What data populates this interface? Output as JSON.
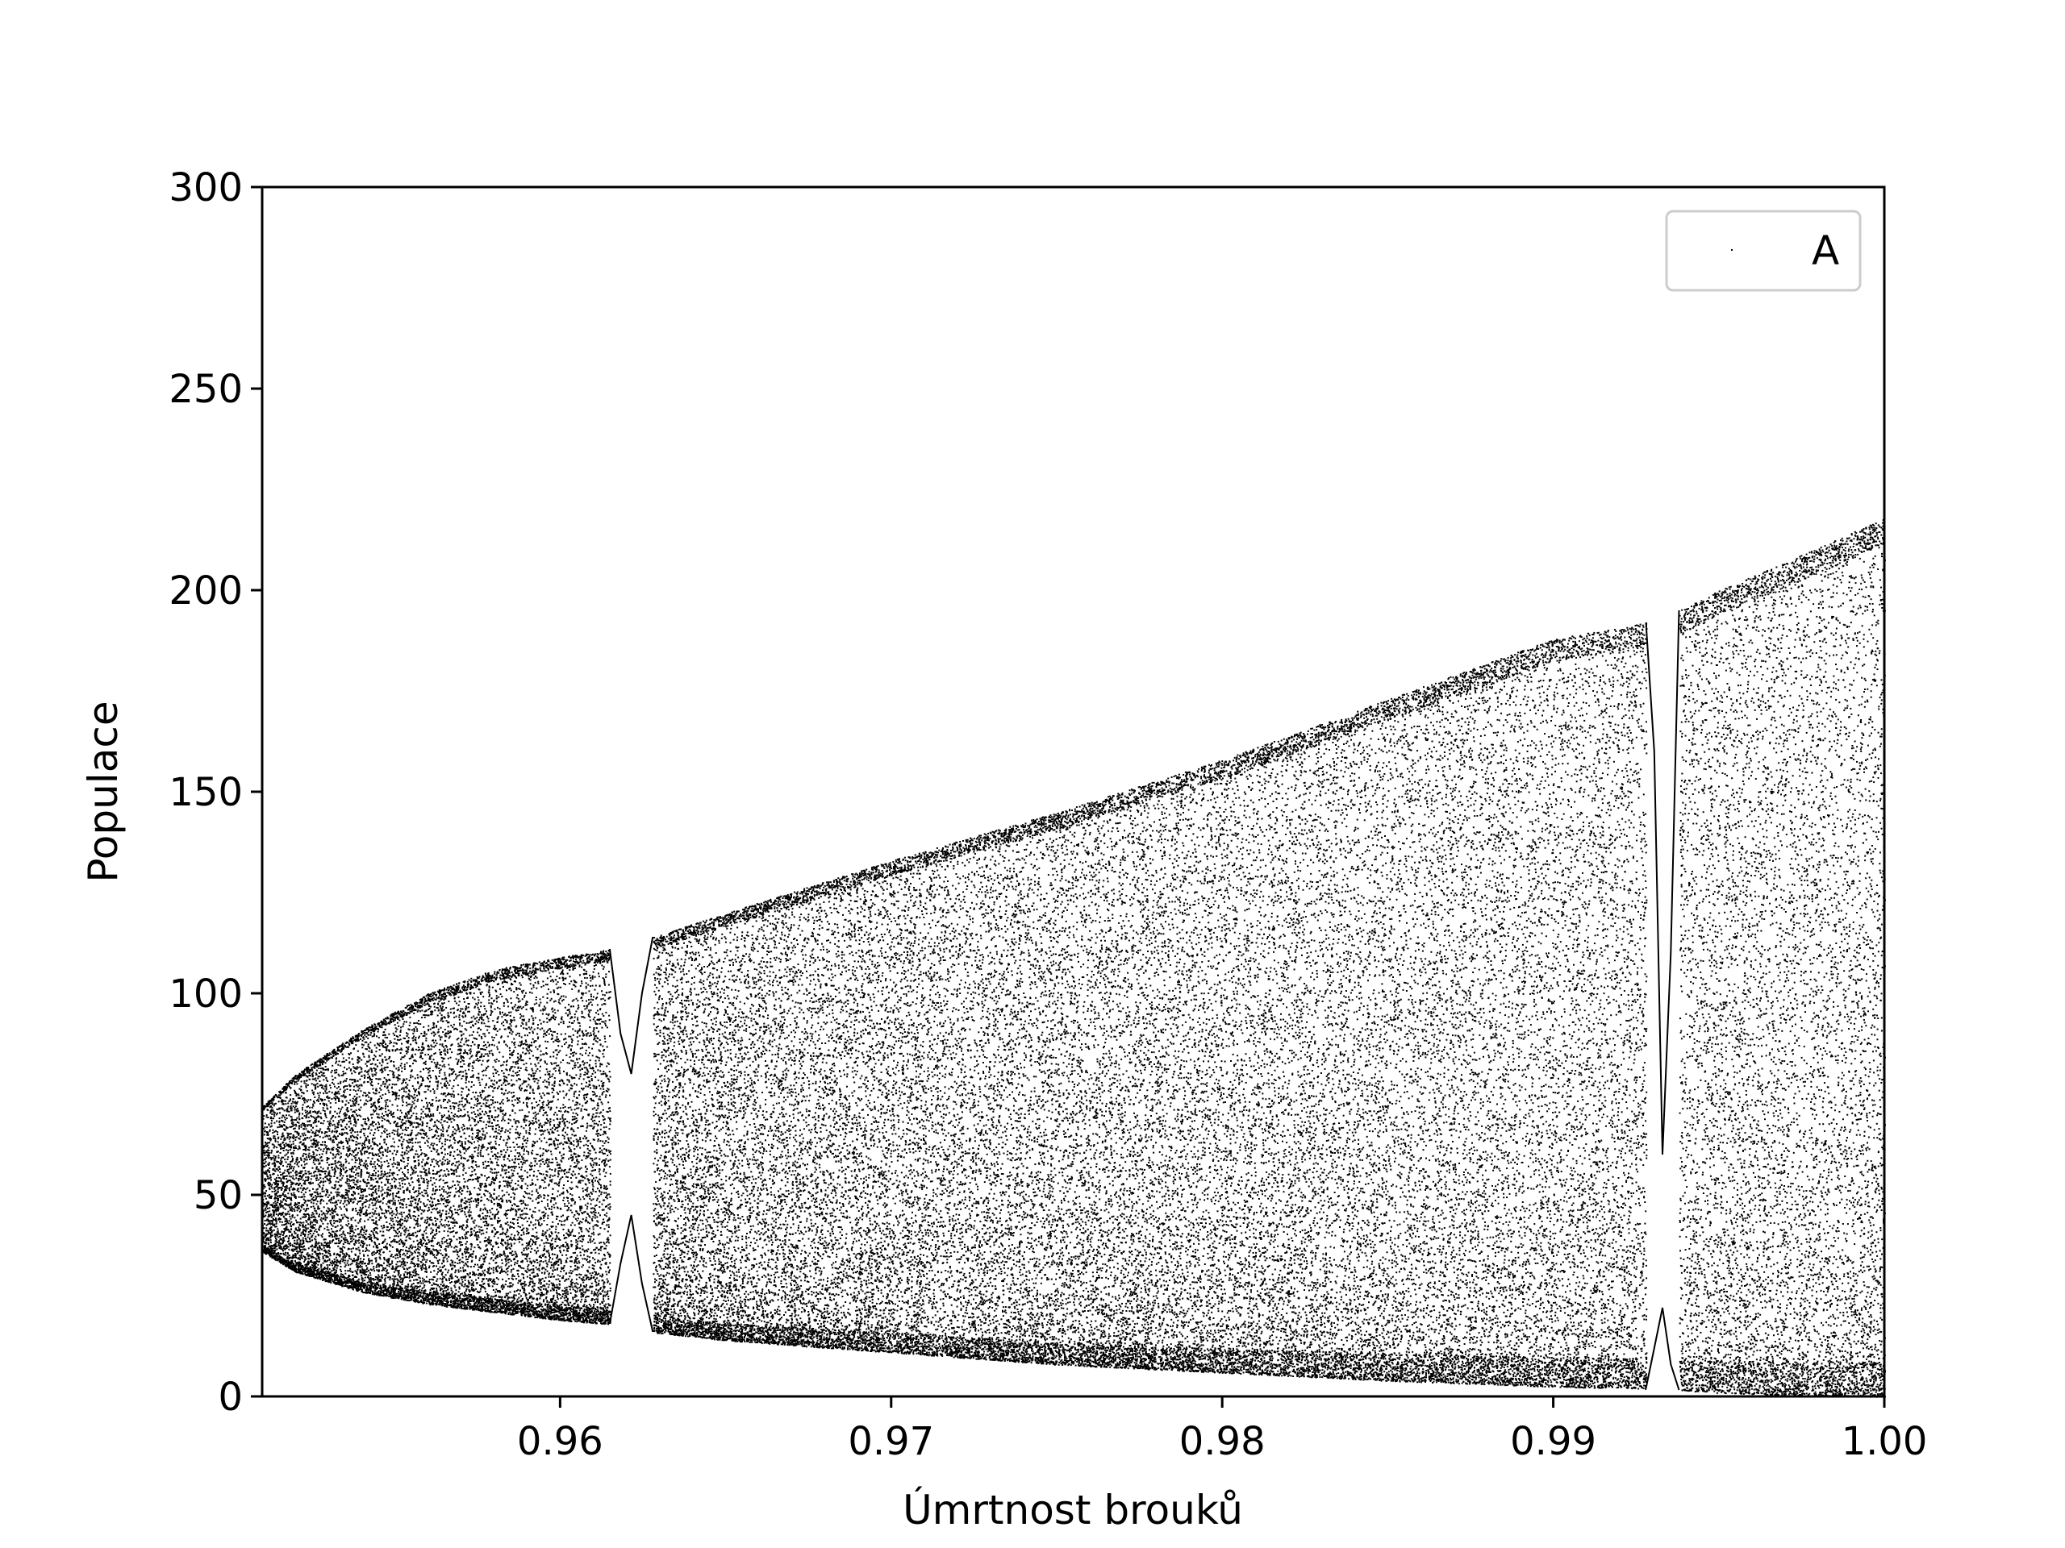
{
  "chart_data": {
    "type": "scatter",
    "title": "",
    "xlabel": "Úmrtnost brouků",
    "ylabel": "Populace",
    "xlim": [
      0.951,
      1.0
    ],
    "ylim": [
      0,
      300
    ],
    "x_ticks": [
      0.96,
      0.97,
      0.98,
      0.99,
      1.0
    ],
    "x_tick_labels": [
      "0.96",
      "0.97",
      "0.98",
      "0.99",
      "1.00"
    ],
    "y_ticks": [
      0,
      50,
      100,
      150,
      200,
      250,
      300
    ],
    "y_tick_labels": [
      "0",
      "50",
      "100",
      "150",
      "200",
      "250",
      "300"
    ],
    "grid": false,
    "legend": {
      "position": "top-right",
      "entries": [
        "A"
      ]
    },
    "series": [
      {
        "name": "A",
        "color": "#000000",
        "marker": "pixel",
        "envelope": {
          "x": [
            0.951,
            0.952,
            0.954,
            0.956,
            0.958,
            0.96,
            0.9615,
            0.9628,
            0.965,
            0.97,
            0.975,
            0.98,
            0.985,
            0.99,
            0.9928,
            0.9938,
            0.995,
            0.997,
            1.0
          ],
          "upper": [
            72,
            80,
            91,
            100,
            106,
            109,
            111,
            114,
            120,
            133,
            145,
            158,
            173,
            188,
            192,
            195,
            200,
            207,
            218
          ],
          "lower": [
            36,
            31,
            26,
            23,
            21,
            19,
            18,
            16,
            14,
            11,
            8,
            6,
            4,
            2.5,
            2,
            1.6,
            1,
            0.5,
            0
          ]
        },
        "periodic_windows": [
          {
            "x_range": [
              0.9615,
              0.9628
            ],
            "upper_branch": [
              111,
              90,
              80,
              100,
              114
            ],
            "lower_branch": [
              18,
              33,
              45,
              28,
              16
            ]
          },
          {
            "x_range": [
              0.9928,
              0.9938
            ],
            "upper_branch": [
              192,
              160,
              60,
              110,
              195
            ],
            "lower_branch": [
              2,
              12,
              22,
              8,
              1.6
            ]
          }
        ]
      }
    ]
  }
}
